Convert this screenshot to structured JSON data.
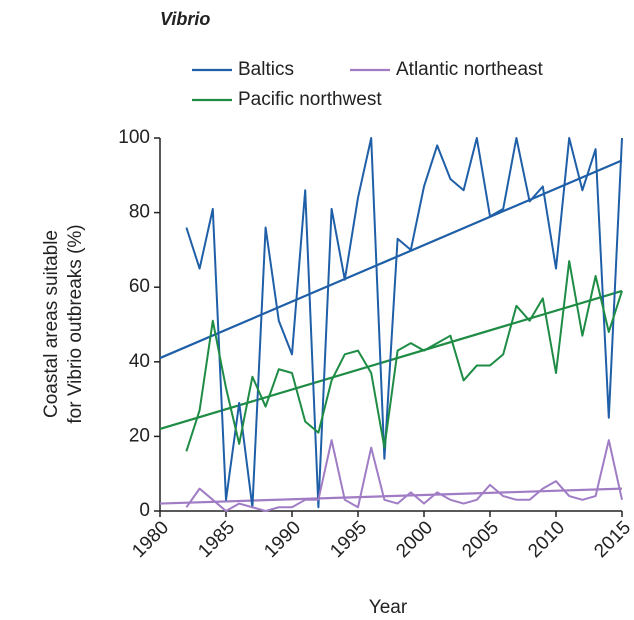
{
  "chart_data": {
    "type": "line",
    "title": "Vibrio",
    "x_label": "Year",
    "y_label": [
      "Coastal areas suitable",
      "for Vibrio outbreaks (%)"
    ],
    "x": [
      1982,
      1983,
      1984,
      1985,
      1986,
      1987,
      1988,
      1989,
      1990,
      1991,
      1992,
      1993,
      1994,
      1995,
      1996,
      1997,
      1998,
      1999,
      2000,
      2001,
      2002,
      2003,
      2004,
      2005,
      2006,
      2007,
      2008,
      2009,
      2010,
      2011,
      2012,
      2013,
      2014,
      2015
    ],
    "series": [
      {
        "name": "Baltics",
        "color": "#1f5fa8",
        "values": [
          76,
          65,
          81,
          3,
          29,
          1,
          76,
          51,
          42,
          86,
          1,
          81,
          62,
          84,
          100,
          14,
          73,
          70,
          87,
          98,
          89,
          86,
          100,
          79,
          81,
          100,
          83,
          87,
          65,
          100,
          86,
          97,
          25,
          100
        ]
      },
      {
        "name": "Atlantic northeast",
        "color": "#a07cc5",
        "values": [
          1,
          6,
          3,
          0,
          2,
          1,
          0,
          1,
          1,
          3,
          3,
          19,
          3,
          1,
          17,
          3,
          2,
          5,
          2,
          5,
          3,
          2,
          3,
          7,
          4,
          3,
          3,
          6,
          8,
          4,
          3,
          4,
          19,
          3
        ]
      },
      {
        "name": "Pacific northwest",
        "color": "#1e8c45",
        "values": [
          16,
          27,
          51,
          33,
          18,
          36,
          28,
          38,
          37,
          24,
          21,
          35,
          42,
          43,
          37,
          17,
          43,
          45,
          43,
          45,
          47,
          35,
          39,
          39,
          42,
          55,
          51,
          57,
          37,
          67,
          47,
          63,
          48,
          59
        ]
      }
    ],
    "trendlines": [
      {
        "color": "#1f5fa8",
        "x": [
          1980,
          2015
        ],
        "values": [
          41,
          94
        ]
      },
      {
        "color": "#a07cc5",
        "x": [
          1980,
          2015
        ],
        "values": [
          2,
          6
        ]
      },
      {
        "color": "#1e8c45",
        "x": [
          1980,
          2015
        ],
        "values": [
          22,
          59
        ]
      }
    ],
    "xlim": [
      1980,
      2015
    ],
    "xticks": [
      1980,
      1985,
      1990,
      1995,
      2000,
      2005,
      2010,
      2015
    ],
    "ylim": [
      0,
      100
    ],
    "yticks": [
      0,
      20,
      40,
      60,
      80,
      100
    ]
  }
}
